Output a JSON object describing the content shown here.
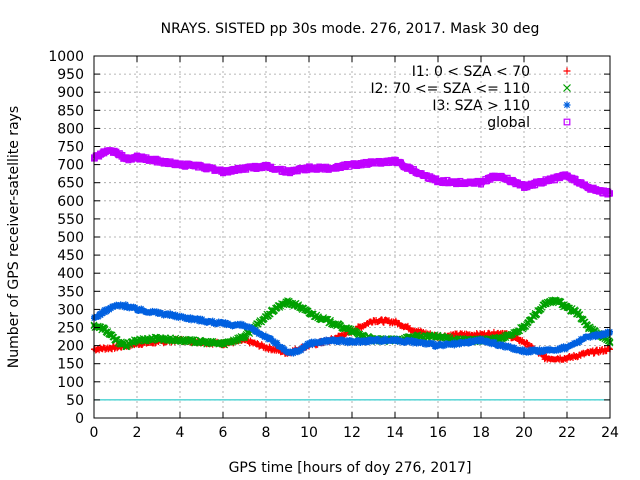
{
  "chart_data": {
    "type": "scatter",
    "title": "NRAYS. SISTED pp 30s mode. 276, 2017. Mask 30 deg",
    "xlabel": "GPS time [hours of doy 276, 2017]",
    "ylabel": "Number of GPS receiver-satellite rays",
    "xlim": [
      0,
      24
    ],
    "ylim": [
      0,
      1000
    ],
    "xticks": [
      0,
      2,
      4,
      6,
      8,
      10,
      12,
      14,
      16,
      18,
      20,
      22,
      24
    ],
    "yticks": [
      0,
      50,
      100,
      150,
      200,
      250,
      300,
      350,
      400,
      450,
      500,
      550,
      600,
      650,
      700,
      750,
      800,
      850,
      900,
      950,
      1000
    ],
    "grid": true,
    "legend_position": "top-right",
    "series": [
      {
        "name": "I1: 0 < SZA < 70",
        "marker": "+",
        "color": "#ff0000",
        "x": [
          0,
          1,
          2,
          3,
          4,
          5,
          6,
          7,
          8,
          9,
          10,
          11,
          12,
          13,
          14,
          15,
          16,
          17,
          18,
          19,
          20,
          21,
          22,
          23,
          24
        ],
        "y": [
          190,
          195,
          205,
          210,
          215,
          210,
          205,
          215,
          195,
          180,
          200,
          215,
          240,
          270,
          265,
          240,
          225,
          230,
          230,
          235,
          210,
          165,
          165,
          180,
          190
        ]
      },
      {
        "name": "I2: 70 <= SZA <= 110",
        "marker": "x",
        "color": "#00a000",
        "x": [
          0,
          0.5,
          1,
          1.5,
          2,
          3,
          4,
          5,
          6,
          7,
          8,
          8.5,
          9,
          9.5,
          10,
          11,
          12,
          13,
          14,
          15,
          16,
          17,
          18,
          19,
          20,
          20.5,
          21,
          21.5,
          22,
          22.5,
          23,
          24
        ],
        "y": [
          255,
          245,
          215,
          200,
          215,
          220,
          215,
          210,
          205,
          225,
          280,
          305,
          320,
          310,
          290,
          265,
          240,
          215,
          215,
          225,
          225,
          215,
          215,
          220,
          250,
          285,
          315,
          325,
          305,
          290,
          250,
          210
        ]
      },
      {
        "name": "I3: SZA > 110",
        "marker": "*",
        "color": "#0060e0",
        "x": [
          0,
          0.5,
          1,
          1.5,
          2,
          3,
          4,
          5,
          6,
          7,
          7.5,
          8,
          8.5,
          9,
          9.5,
          10,
          11,
          12,
          13,
          14,
          15,
          16,
          17,
          18,
          19,
          20,
          21,
          22,
          23,
          24
        ],
        "y": [
          275,
          295,
          310,
          310,
          300,
          290,
          280,
          270,
          260,
          255,
          240,
          225,
          205,
          180,
          185,
          205,
          215,
          210,
          215,
          215,
          210,
          200,
          205,
          215,
          200,
          185,
          185,
          195,
          225,
          235
        ]
      },
      {
        "name": "global",
        "marker": "square",
        "color": "#c000ff",
        "x": [
          0,
          0.5,
          1,
          1.5,
          2,
          3,
          4,
          5,
          6,
          7,
          8,
          9,
          10,
          11,
          12,
          13,
          14,
          15,
          16,
          17,
          18,
          18.5,
          19,
          20,
          21,
          22,
          23,
          24
        ],
        "y": [
          720,
          735,
          735,
          715,
          720,
          710,
          700,
          695,
          680,
          690,
          695,
          680,
          690,
          690,
          700,
          705,
          710,
          680,
          655,
          650,
          650,
          665,
          665,
          640,
          655,
          670,
          635,
          620
        ]
      },
      {
        "name": "",
        "marker": "line",
        "color": "#00c0c0",
        "x": [
          0,
          24
        ],
        "y": [
          50,
          50
        ]
      }
    ]
  }
}
